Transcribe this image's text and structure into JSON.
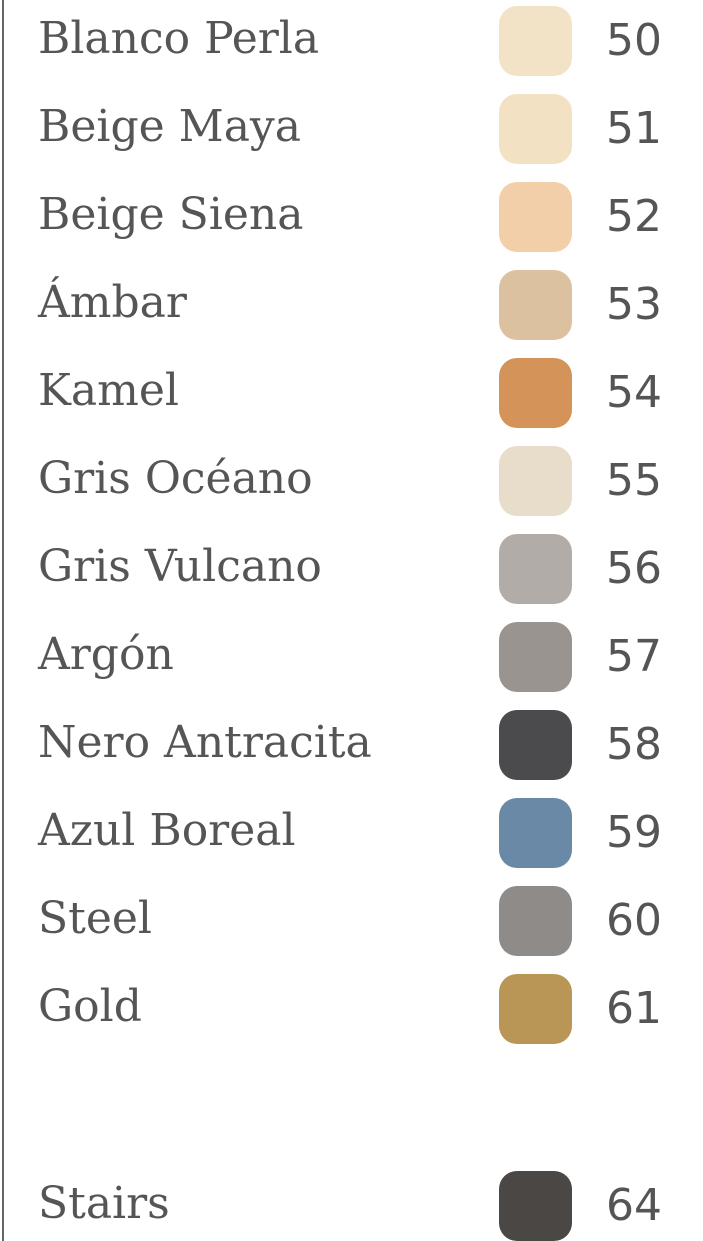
{
  "items": [
    {
      "name": "Blanco Perla",
      "code": 50,
      "color": "#f3e3c6"
    },
    {
      "name": "Beige Maya",
      "code": 51,
      "color": "#f3e1c4"
    },
    {
      "name": "Beige Siena",
      "code": 52,
      "color": "#f2cfa8"
    },
    {
      "name": "Ámbar",
      "code": 53,
      "color": "#dcc1a0"
    },
    {
      "name": "Kamel",
      "code": 54,
      "color": "#d49358"
    },
    {
      "name": "Gris Océano",
      "code": 55,
      "color": "#e8dccb"
    },
    {
      "name": "Gris Vulcano",
      "code": 56,
      "color": "#b1aca7"
    },
    {
      "name": "Argón",
      "code": 57,
      "color": "#9a9491"
    },
    {
      "name": "Nero Antracita",
      "code": 58,
      "color": "#4b4b4e"
    },
    {
      "name": "Azul Boreal",
      "code": 59,
      "color": "#6a89a6"
    },
    {
      "name": "Steel",
      "code": 60,
      "color": "#8e8b88"
    },
    {
      "name": "Gold",
      "code": 61,
      "color": "#b99656"
    }
  ],
  "extra": {
    "name": "Stairs",
    "code": 64,
    "color": "#4a4745"
  }
}
